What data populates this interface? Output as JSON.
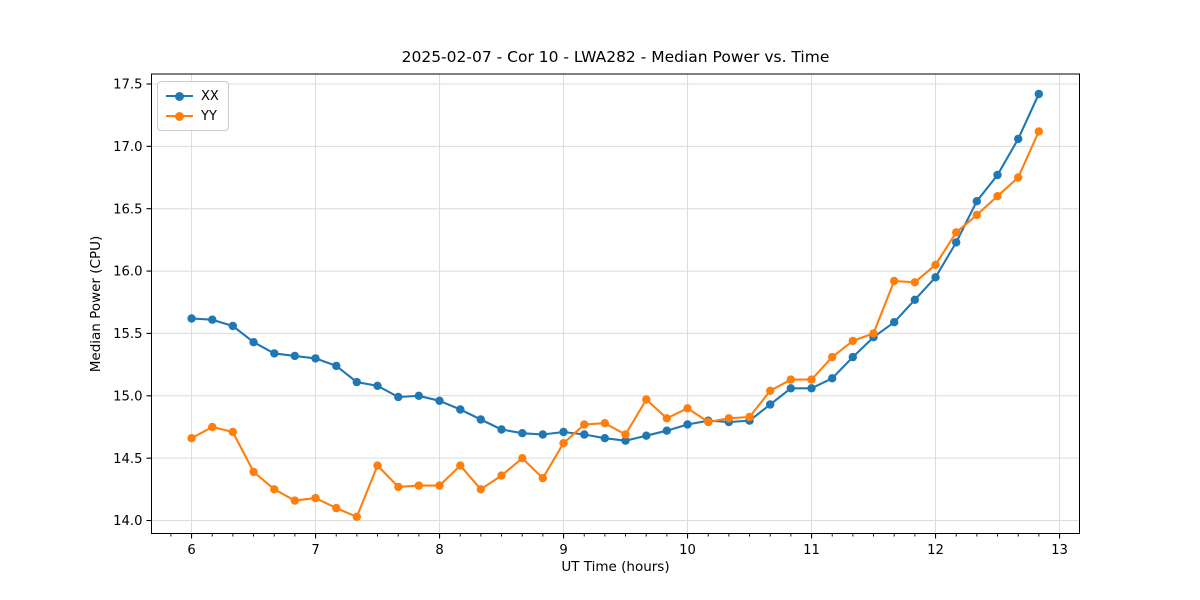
{
  "figure": {
    "title": "2025-02-07 - Cor 10 - LWA282 - Median Power vs. Time",
    "xlabel": "UT Time (hours)",
    "ylabel": "Median Power (CPU)"
  },
  "chart_data": {
    "type": "line",
    "title": "2025-02-07 - Cor 10 - LWA282 - Median Power vs. Time",
    "xlabel": "UT Time (hours)",
    "ylabel": "Median Power (CPU)",
    "grid": true,
    "legend_position": "upper-left",
    "marker": "circle",
    "xlim": [
      5.677,
      13.161
    ],
    "ylim": [
      13.896,
      17.58
    ],
    "xticks": [
      6,
      7,
      8,
      9,
      10,
      11,
      12,
      13
    ],
    "yticks": [
      14.0,
      14.5,
      15.0,
      15.5,
      16.0,
      16.5,
      17.0,
      17.5
    ],
    "x_minor_interval": 0.16667,
    "x": [
      6.0,
      6.167,
      6.333,
      6.5,
      6.667,
      6.833,
      7.0,
      7.167,
      7.333,
      7.5,
      7.667,
      7.833,
      8.0,
      8.167,
      8.333,
      8.5,
      8.667,
      8.833,
      9.0,
      9.167,
      9.333,
      9.5,
      9.667,
      9.833,
      10.0,
      10.167,
      10.333,
      10.5,
      10.667,
      10.833,
      11.0,
      11.167,
      11.333,
      11.5,
      11.667,
      11.833,
      12.0,
      12.167,
      12.333,
      12.5,
      12.667,
      12.833
    ],
    "series": [
      {
        "name": "XX",
        "color": "#1f77b4",
        "values": [
          15.62,
          15.61,
          15.56,
          15.43,
          15.34,
          15.32,
          15.3,
          15.24,
          15.11,
          15.08,
          14.99,
          15.0,
          14.96,
          14.89,
          14.81,
          14.73,
          14.7,
          14.69,
          14.71,
          14.69,
          14.66,
          14.64,
          14.68,
          14.72,
          14.77,
          14.8,
          14.79,
          14.8,
          14.93,
          15.06,
          15.06,
          15.14,
          15.31,
          15.47,
          15.59,
          15.77,
          15.95,
          16.23,
          16.56,
          16.77,
          17.06,
          17.42
        ]
      },
      {
        "name": "YY",
        "color": "#ff7f0e",
        "values": [
          14.66,
          14.75,
          14.71,
          14.39,
          14.25,
          14.16,
          14.18,
          14.1,
          14.03,
          14.44,
          14.27,
          14.28,
          14.28,
          14.44,
          14.25,
          14.36,
          14.5,
          14.34,
          14.62,
          14.77,
          14.78,
          14.69,
          14.97,
          14.82,
          14.9,
          14.79,
          14.82,
          14.83,
          15.04,
          15.13,
          15.13,
          15.31,
          15.44,
          15.5,
          15.92,
          15.91,
          16.05,
          16.31,
          16.45,
          16.6,
          16.75,
          17.12
        ]
      }
    ],
    "style_colors": {
      "grid": "#dcdcdc",
      "spine": "#000000",
      "tick": "#000000",
      "text": "#000000"
    }
  }
}
